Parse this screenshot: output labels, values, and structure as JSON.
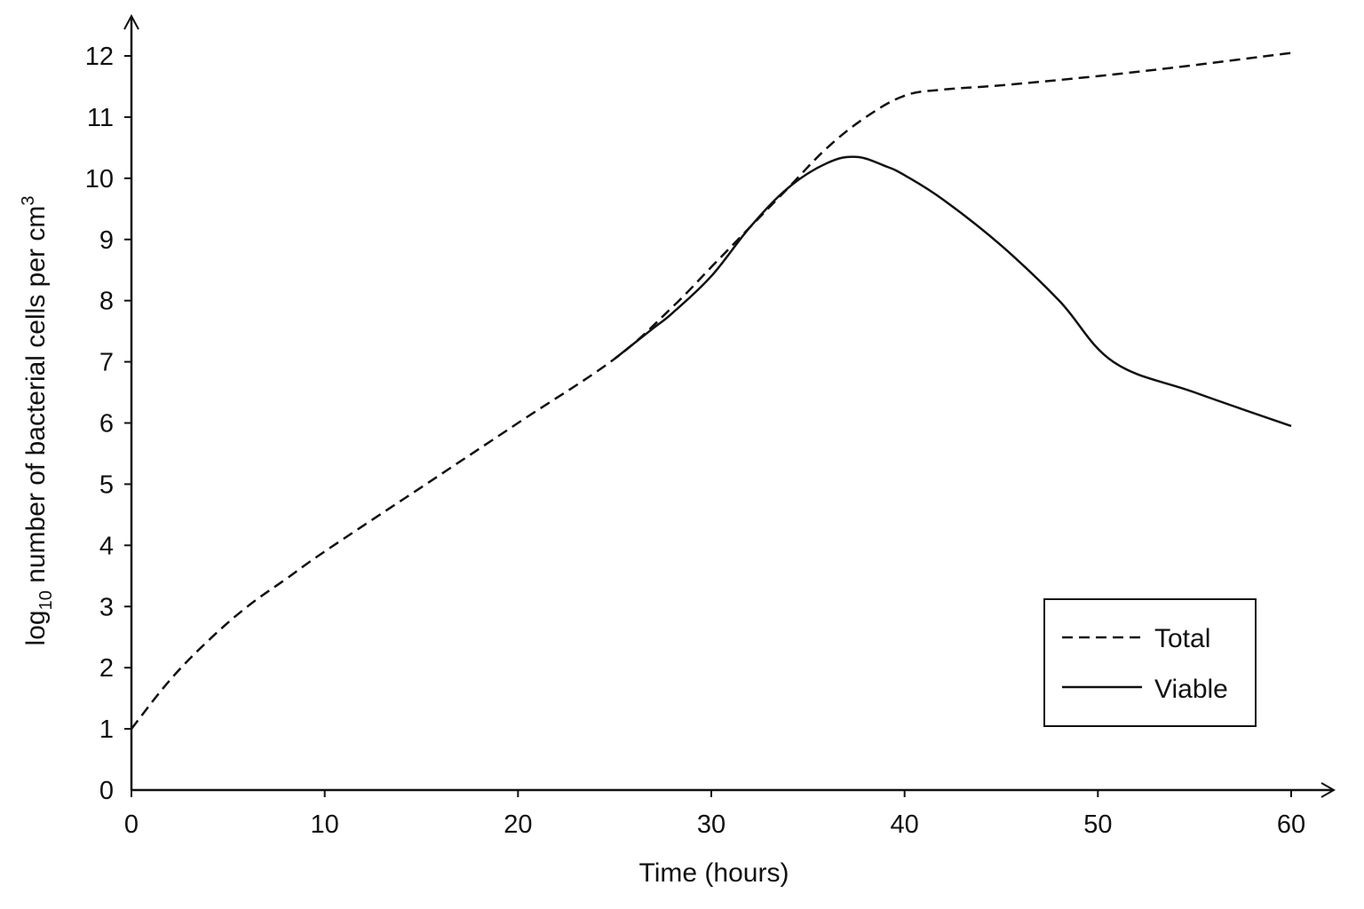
{
  "chart_data": {
    "type": "line",
    "xlabel": "Time (hours)",
    "ylabel": {
      "prefix": "log",
      "subscript": "10",
      "middle": " number of bacterial cells per cm",
      "superscript": "3"
    },
    "xlim": [
      0,
      60
    ],
    "ylim": [
      0,
      12
    ],
    "x_ticks": [
      0,
      10,
      20,
      30,
      40,
      50,
      60
    ],
    "y_ticks": [
      0,
      1,
      2,
      3,
      4,
      5,
      6,
      7,
      8,
      9,
      10,
      11,
      12
    ],
    "grid": false,
    "legend_position": "bottom-right",
    "series": [
      {
        "name": "Total",
        "style": "dashed",
        "color": "#111111",
        "points": [
          [
            0,
            1.0
          ],
          [
            2,
            1.8
          ],
          [
            4,
            2.45
          ],
          [
            6,
            3.0
          ],
          [
            8,
            3.45
          ],
          [
            10,
            3.9
          ],
          [
            15,
            4.95
          ],
          [
            20,
            6.0
          ],
          [
            25,
            7.05
          ],
          [
            28,
            7.9
          ],
          [
            30,
            8.55
          ],
          [
            32,
            9.2
          ],
          [
            34,
            9.85
          ],
          [
            36,
            10.5
          ],
          [
            38,
            11.0
          ],
          [
            40,
            11.35
          ],
          [
            42,
            11.45
          ],
          [
            45,
            11.52
          ],
          [
            50,
            11.67
          ],
          [
            55,
            11.85
          ],
          [
            60,
            12.05
          ]
        ]
      },
      {
        "name": "Viable",
        "style": "solid",
        "color": "#111111",
        "points": [
          [
            25,
            7.05
          ],
          [
            27,
            7.55
          ],
          [
            28,
            7.8
          ],
          [
            30,
            8.4
          ],
          [
            32,
            9.2
          ],
          [
            34,
            9.85
          ],
          [
            36,
            10.25
          ],
          [
            37.5,
            10.35
          ],
          [
            39,
            10.2
          ],
          [
            40,
            10.05
          ],
          [
            42,
            9.65
          ],
          [
            45,
            8.9
          ],
          [
            48,
            8.0
          ],
          [
            50.8,
            7.0
          ],
          [
            55,
            6.5
          ],
          [
            60,
            5.95
          ]
        ]
      }
    ]
  }
}
